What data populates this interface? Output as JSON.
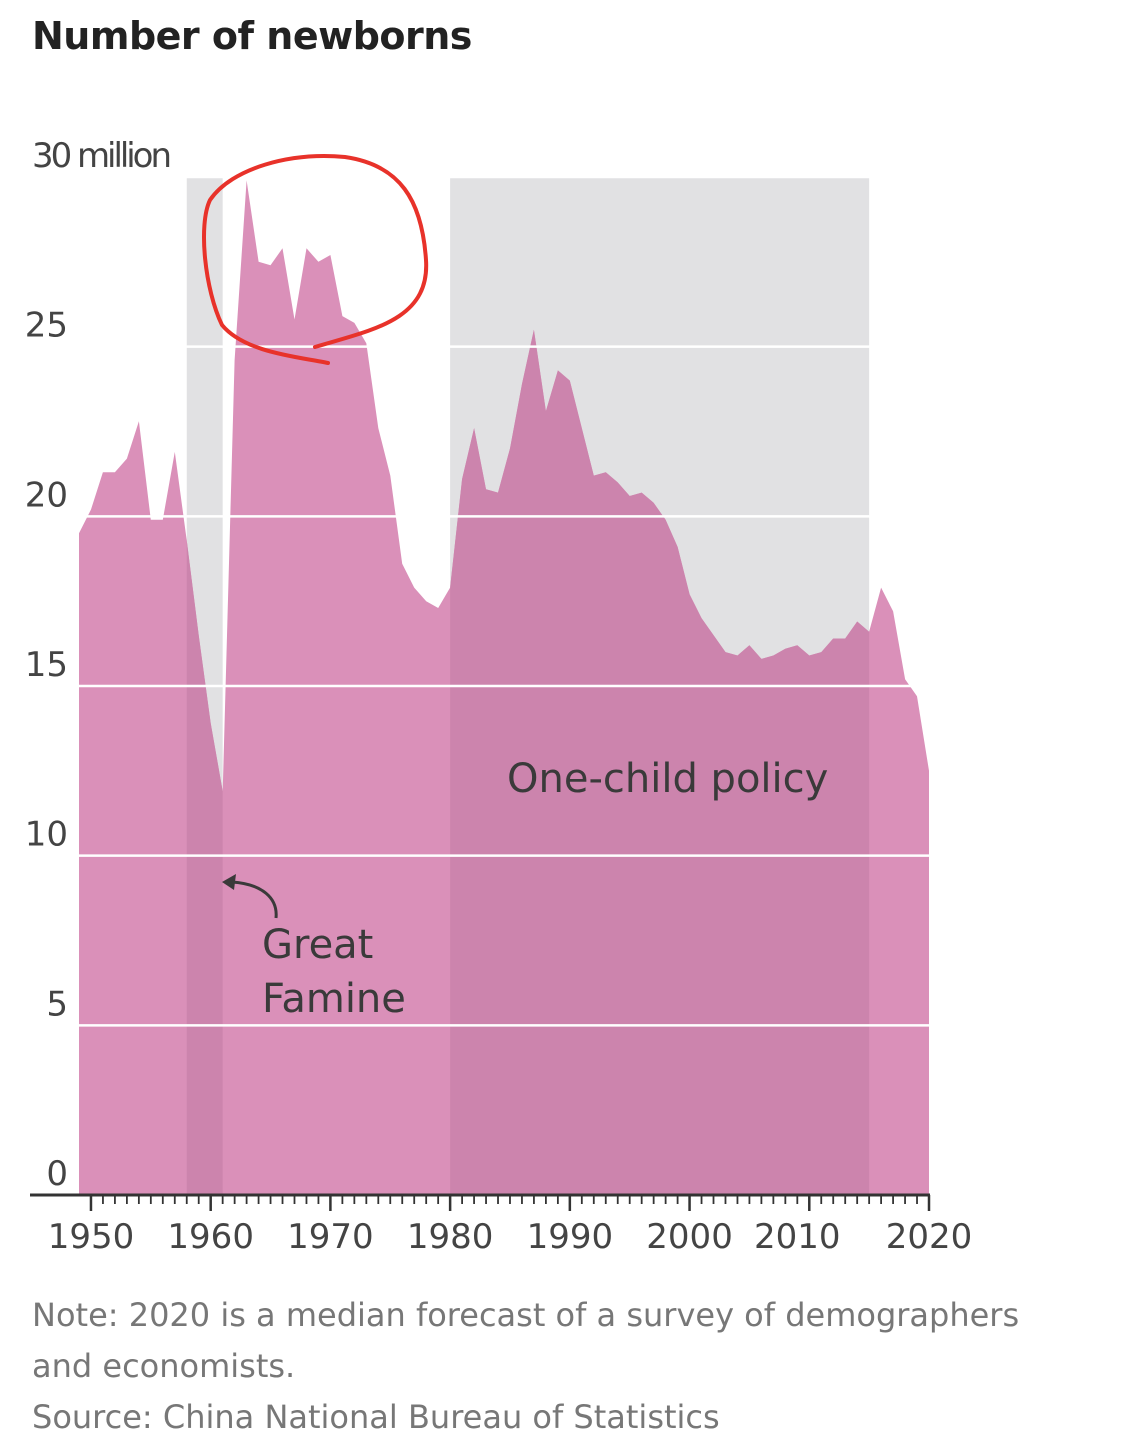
{
  "title": "Number of newborns",
  "note_line1": "Note: 2020 is a median forecast  of a survey of demographers",
  "note_line2": "and economists.",
  "source": "Source: China National Bureau of Statistics",
  "colors": {
    "area": "#da90b9",
    "area_shaded": "#cc84ad",
    "shade": "#e1e1e3",
    "grid": "#ffffff",
    "axis": "#333333",
    "text": "#444444",
    "annotation": "#3a3a3a",
    "circle": "#e8322a"
  },
  "chart_data": {
    "type": "area",
    "title": "Number of newborns",
    "y_unit_label": "30 million",
    "ylim": [
      0,
      30
    ],
    "xlim": [
      1949,
      2020
    ],
    "y_ticks": [
      0,
      5,
      10,
      15,
      20,
      25,
      30
    ],
    "y_tick_labels": [
      "0",
      "5",
      "10",
      "15",
      "20",
      "25",
      "30 million"
    ],
    "x_ticks": [
      1950,
      1960,
      1970,
      1980,
      1990,
      2000,
      2010,
      2020
    ],
    "x_tick_labels": [
      "1950",
      "1960",
      "1970",
      "1980",
      "1990",
      "2000",
      "2010",
      "2020"
    ],
    "grid": true,
    "shaded_periods": [
      {
        "start": 1958,
        "end": 1961
      },
      {
        "start": 1980,
        "end": 2015
      }
    ],
    "annotations": {
      "great_famine_line1": "Great",
      "great_famine_line2": "Famine",
      "one_child_policy": "One-child policy"
    },
    "highlight": "hand-drawn red circle around 1963–1973 peak",
    "series": [
      {
        "x": [
          1949,
          1950,
          1951,
          1952,
          1953,
          1954,
          1955,
          1956,
          1957,
          1958,
          1959,
          1960,
          1961,
          1962,
          1963,
          1964,
          1965,
          1966,
          1967,
          1968,
          1969,
          1970,
          1971,
          1972,
          1973,
          1974,
          1975,
          1976,
          1977,
          1978,
          1979,
          1980,
          1981,
          1982,
          1983,
          1984,
          1985,
          1986,
          1987,
          1988,
          1989,
          1990,
          1991,
          1992,
          1993,
          1994,
          1995,
          1996,
          1997,
          1998,
          1999,
          2000,
          2001,
          2002,
          2003,
          2004,
          2005,
          2006,
          2007,
          2008,
          2009,
          2010,
          2011,
          2012,
          2013,
          2014,
          2015,
          2016,
          2017,
          2018,
          2019,
          2020
        ],
        "values": [
          19.5,
          20.2,
          21.3,
          21.3,
          21.7,
          22.8,
          19.9,
          19.9,
          21.9,
          19.3,
          16.5,
          13.9,
          11.9,
          24.6,
          29.9,
          27.5,
          27.4,
          27.9,
          25.8,
          27.9,
          27.5,
          27.7,
          25.9,
          25.7,
          25.1,
          22.6,
          21.2,
          18.6,
          17.9,
          17.5,
          17.3,
          17.9,
          21.1,
          22.6,
          20.8,
          20.7,
          22.0,
          23.9,
          25.5,
          23.1,
          24.3,
          24.0,
          22.6,
          21.2,
          21.3,
          21.0,
          20.6,
          20.7,
          20.4,
          19.9,
          19.1,
          17.7,
          17.0,
          16.5,
          16.0,
          15.9,
          16.2,
          15.8,
          15.9,
          16.1,
          16.2,
          15.9,
          16.0,
          16.4,
          16.4,
          16.9,
          16.6,
          17.9,
          17.2,
          15.2,
          14.7,
          12.5
        ]
      }
    ]
  }
}
